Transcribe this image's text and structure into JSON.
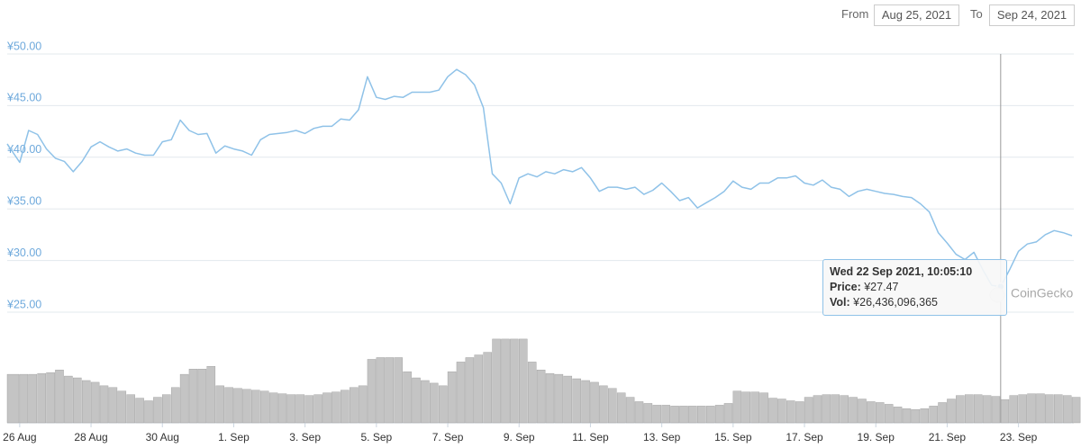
{
  "date_range": {
    "from_label": "From",
    "from": "Aug 25, 2021",
    "to_label": "To",
    "to": "Sep 24, 2021"
  },
  "chart_data": {
    "type": "line",
    "x": [
      0.65,
      1,
      1.25,
      1.5,
      1.75,
      2,
      2.25,
      2.5,
      2.75,
      3,
      3.25,
      3.5,
      3.75,
      4,
      4.25,
      4.5,
      4.75,
      5,
      5.25,
      5.5,
      5.75,
      6,
      6.25,
      6.5,
      6.75,
      7,
      7.25,
      7.5,
      7.75,
      8,
      8.25,
      8.5,
      8.75,
      9,
      9.25,
      9.5,
      9.75,
      10,
      10.25,
      10.5,
      10.75,
      11,
      11.25,
      11.5,
      11.75,
      12,
      12.25,
      12.5,
      12.75,
      13,
      13.25,
      13.5,
      13.75,
      14,
      14.25,
      14.5,
      14.75,
      15,
      15.25,
      15.5,
      15.75,
      16,
      16.25,
      16.5,
      16.75,
      17,
      17.25,
      17.5,
      17.75,
      18,
      18.25,
      18.5,
      18.75,
      19,
      19.25,
      19.5,
      19.75,
      20,
      20.25,
      20.5,
      20.75,
      21,
      21.25,
      21.5,
      21.75,
      22,
      22.25,
      22.5,
      22.75,
      23,
      23.25,
      23.5,
      23.75,
      24,
      24.25,
      24.5,
      24.75,
      25,
      25.25,
      25.5,
      25.75,
      26,
      26.25,
      26.5,
      26.75,
      27,
      27.25,
      27.5,
      27.75,
      28,
      28.25,
      28.5,
      28.75,
      29,
      29.25,
      29.5,
      29.75,
      30,
      30.25,
      30.5
    ],
    "series": [
      {
        "color": "#8fc2e8",
        "values": [
          41.3,
          39.5,
          42.6,
          42.2,
          40.8,
          39.9,
          39.6,
          38.6,
          39.6,
          41.0,
          41.5,
          41.0,
          40.6,
          40.8,
          40.4,
          40.2,
          40.2,
          41.5,
          41.7,
          43.6,
          42.6,
          42.2,
          42.3,
          40.4,
          41.1,
          40.8,
          40.6,
          40.2,
          41.7,
          42.2,
          42.3,
          42.4,
          42.6,
          42.3,
          42.8,
          43.0,
          43.0,
          43.7,
          43.6,
          44.6,
          47.8,
          45.8,
          45.6,
          45.9,
          45.8,
          46.3,
          46.3,
          46.3,
          46.5,
          47.8,
          48.5,
          48.0,
          47.0,
          44.8,
          38.4,
          37.5,
          35.5,
          38.0,
          38.4,
          38.1,
          38.6,
          38.4,
          38.8,
          38.6,
          39.0,
          38.0,
          36.7,
          37.1,
          37.1,
          36.9,
          37.1,
          36.4,
          36.8,
          37.5,
          36.7,
          35.8,
          36.1,
          35.1,
          35.6,
          36.1,
          36.7,
          37.7,
          37.1,
          36.9,
          37.5,
          37.5,
          38.0,
          38.0,
          38.2,
          37.5,
          37.3,
          37.8,
          37.1,
          36.9,
          36.2,
          36.7,
          36.9,
          36.7,
          36.5,
          36.4,
          36.2,
          36.1,
          35.5,
          34.7,
          32.7,
          31.7,
          30.6,
          30.1,
          30.8,
          29.1,
          27.6,
          27.47,
          29.1,
          30.9,
          31.6,
          31.8,
          32.5,
          32.9,
          32.7,
          32.4
        ]
      },
      {
        "type": "bar",
        "axis": "y2",
        "color": "#c4c4c4",
        "values": [
          55000000000.0,
          55000000000.0,
          55000000000.0,
          56000000000.0,
          57000000000.0,
          60000000000.0,
          53000000000.0,
          51000000000.0,
          48000000000.0,
          46000000000.0,
          42000000000.0,
          40000000000.0,
          36000000000.0,
          32000000000.0,
          28000000000.0,
          25000000000.0,
          29000000000.0,
          32000000000.0,
          40000000000.0,
          55000000000.0,
          61000000000.0,
          61000000000.0,
          64000000000.0,
          42000000000.0,
          40000000000.0,
          39000000000.0,
          38000000000.0,
          37000000000.0,
          36000000000.0,
          34000000000.0,
          33000000000.0,
          32000000000.0,
          32000000000.0,
          31000000000.0,
          32000000000.0,
          34000000000.0,
          35000000000.0,
          37000000000.0,
          40000000000.0,
          42000000000.0,
          72000000000.0,
          74000000000.0,
          74000000000.0,
          74000000000.0,
          58000000000.0,
          51000000000.0,
          48000000000.0,
          45000000000.0,
          42000000000.0,
          58000000000.0,
          69000000000.0,
          74000000000.0,
          77000000000.0,
          80000000000.0,
          95000000000.0,
          95000000000.0,
          95000000000.0,
          95000000000.0,
          69000000000.0,
          60000000000.0,
          56000000000.0,
          55000000000.0,
          53000000000.0,
          50000000000.0,
          48000000000.0,
          46000000000.0,
          42000000000.0,
          39000000000.0,
          34000000000.0,
          29000000000.0,
          24000000000.0,
          22000000000.0,
          20000000000.0,
          20000000000.0,
          19000000000.0,
          19000000000.0,
          19000000000.0,
          19000000000.0,
          19000000000.0,
          20000000000.0,
          22000000000.0,
          36000000000.0,
          35000000000.0,
          35000000000.0,
          34000000000.0,
          28000000000.0,
          27000000000.0,
          25000000000.0,
          24000000000.0,
          29000000000.0,
          31000000000.0,
          32000000000.0,
          32000000000.0,
          31000000000.0,
          29000000000.0,
          27000000000.0,
          24000000000.0,
          23000000000.0,
          21000000000.0,
          18000000000.0,
          16000000000.0,
          15000000000.0,
          16000000000.0,
          19000000000.0,
          23000000000.0,
          27000000000.0,
          31000000000.0,
          32000000000.0,
          32000000000.0,
          31000000000.0,
          30000000000.0,
          26436096365,
          31000000000.0,
          32000000000.0,
          33000000000.0,
          33000000000.0,
          32000000000.0,
          32000000000.0,
          31000000000.0,
          29000000000.0
        ]
      }
    ],
    "xlim": [
      0.65,
      30.55
    ],
    "xticks": [
      {
        "value": 1,
        "label": "26 Aug"
      },
      {
        "value": 3,
        "label": "28 Aug"
      },
      {
        "value": 5,
        "label": "30 Aug"
      },
      {
        "value": 7,
        "label": "1. Sep"
      },
      {
        "value": 9,
        "label": "3. Sep"
      },
      {
        "value": 11,
        "label": "5. Sep"
      },
      {
        "value": 13,
        "label": "7. Sep"
      },
      {
        "value": 15,
        "label": "9. Sep"
      },
      {
        "value": 17,
        "label": "11. Sep"
      },
      {
        "value": 19,
        "label": "13. Sep"
      },
      {
        "value": 21,
        "label": "15. Sep"
      },
      {
        "value": 23,
        "label": "17. Sep"
      },
      {
        "value": 25,
        "label": "19. Sep"
      },
      {
        "value": 27,
        "label": "21. Sep"
      },
      {
        "value": 29,
        "label": "23. Sep"
      }
    ],
    "ylim": [
      25,
      50
    ],
    "yticks": [
      {
        "value": 50,
        "label": "¥50.00"
      },
      {
        "value": 45,
        "label": "¥45.00"
      },
      {
        "value": 40,
        "label": "¥40.00"
      },
      {
        "value": 35,
        "label": "¥35.00"
      },
      {
        "value": 30,
        "label": "¥30.00"
      },
      {
        "value": 25,
        "label": "¥25.00"
      }
    ],
    "y2lim": [
      0,
      100000000000.0
    ],
    "grid": true
  },
  "tooltip": {
    "date": "Wed 22 Sep 2021, 10:05:10",
    "price_label": "Price:",
    "price": "¥27.47",
    "vol_label": "Vol:",
    "vol": "¥26,436,096,365"
  },
  "watermark": "CoinGecko"
}
